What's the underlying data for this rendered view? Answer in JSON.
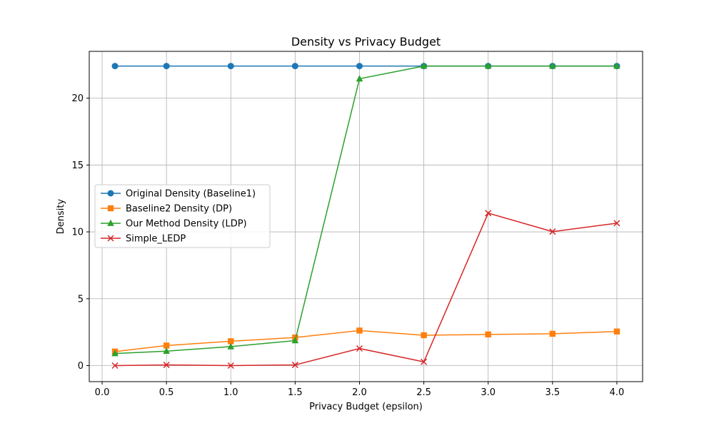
{
  "chart_data": {
    "type": "line",
    "title": "Density vs Privacy Budget",
    "xlabel": "Privacy Budget (epsilon)",
    "ylabel": "Density",
    "xlim": [
      -0.1,
      4.2
    ],
    "ylim": [
      -1.2,
      23.5
    ],
    "x": [
      0.1,
      0.5,
      1.0,
      1.5,
      2.0,
      2.5,
      3.0,
      3.5,
      4.0
    ],
    "xticks": [
      0.0,
      0.5,
      1.0,
      1.5,
      2.0,
      2.5,
      3.0,
      3.5,
      4.0
    ],
    "xtick_labels": [
      "0.0",
      "0.5",
      "1.0",
      "1.5",
      "2.0",
      "2.5",
      "3.0",
      "3.5",
      "4.0"
    ],
    "yticks": [
      0,
      5,
      10,
      15,
      20
    ],
    "ytick_labels": [
      "0",
      "5",
      "10",
      "15",
      "20"
    ],
    "grid": true,
    "legend_position": "center-left",
    "series": [
      {
        "name": "Original Density (Baseline1)",
        "color": "#1f77b4",
        "marker": "circle",
        "values": [
          22.4,
          22.4,
          22.4,
          22.4,
          22.4,
          22.4,
          22.4,
          22.4,
          22.4
        ]
      },
      {
        "name": "Baseline2 Density (DP)",
        "color": "#ff7f0e",
        "marker": "square",
        "values": [
          1.05,
          1.5,
          1.82,
          2.1,
          2.62,
          2.27,
          2.33,
          2.38,
          2.55
        ]
      },
      {
        "name": "Our Method Density (LDP)",
        "color": "#2ca02c",
        "marker": "triangle",
        "values": [
          0.9,
          1.08,
          1.42,
          1.87,
          21.45,
          22.4,
          22.4,
          22.4,
          22.4
        ]
      },
      {
        "name": "Simple_LEDP",
        "color": "#d62728",
        "marker": "x",
        "values": [
          0.0,
          0.05,
          0.0,
          0.05,
          1.28,
          0.28,
          11.4,
          10.02,
          10.65
        ]
      }
    ]
  }
}
